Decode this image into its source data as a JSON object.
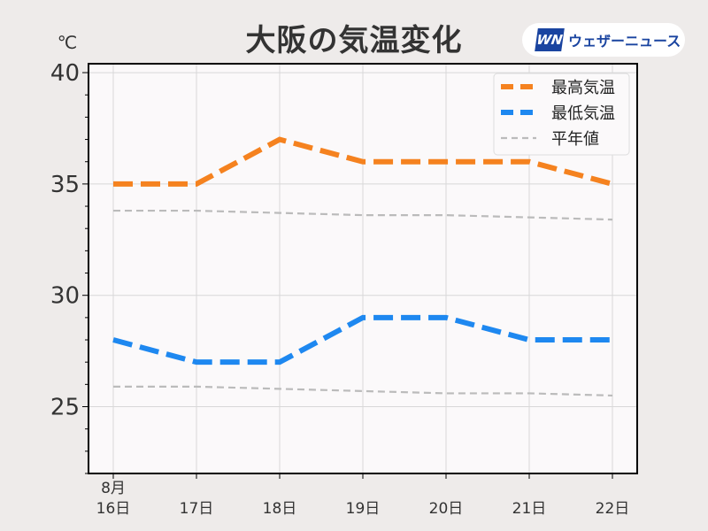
{
  "title": "大阪の気温変化",
  "logo": {
    "mark": "WN",
    "text": "ウェザーニュース"
  },
  "chart_data": {
    "type": "line",
    "title": "大阪の気温変化",
    "ylabel": "℃",
    "categories": [
      "8月\n16日",
      "17日",
      "18日",
      "19日",
      "20日",
      "21日",
      "22日"
    ],
    "ylim": [
      22,
      40.4
    ],
    "yticks": [
      25,
      30,
      35,
      40
    ],
    "grid": true,
    "legend": "top-right",
    "series": [
      {
        "name": "最高気温",
        "color": "#f5821f",
        "style": "dashed-thick",
        "values": [
          35,
          35,
          37,
          36,
          36,
          36,
          35
        ]
      },
      {
        "name": "最低気温",
        "color": "#1e88f0",
        "style": "dashed-thick",
        "values": [
          28,
          27,
          27,
          29,
          29,
          28,
          28
        ]
      },
      {
        "name": "平年値",
        "color": "#bbbbbb",
        "style": "dashed-thin",
        "values": [
          33.8,
          33.8,
          33.7,
          33.6,
          33.6,
          33.5,
          33.4
        ]
      },
      {
        "name": "",
        "color": "#bbbbbb",
        "style": "dashed-thin",
        "values": [
          25.9,
          25.9,
          25.8,
          25.7,
          25.6,
          25.6,
          25.5
        ]
      }
    ]
  }
}
